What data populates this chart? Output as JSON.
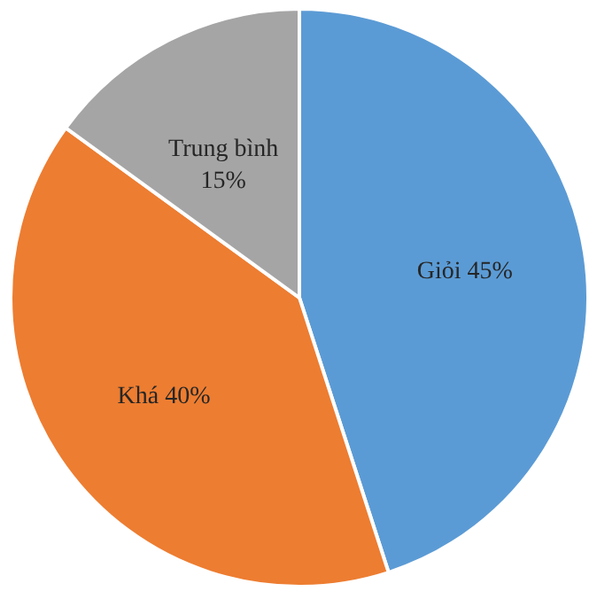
{
  "chart_data": {
    "type": "pie",
    "categories": [
      "Giỏi",
      "Khá",
      "Trung bình"
    ],
    "values": [
      45,
      40,
      15
    ],
    "colors": [
      "#5b9bd5",
      "#ed7d31",
      "#a5a5a5"
    ],
    "value_labels": [
      "45%",
      "40%",
      "15%"
    ]
  }
}
